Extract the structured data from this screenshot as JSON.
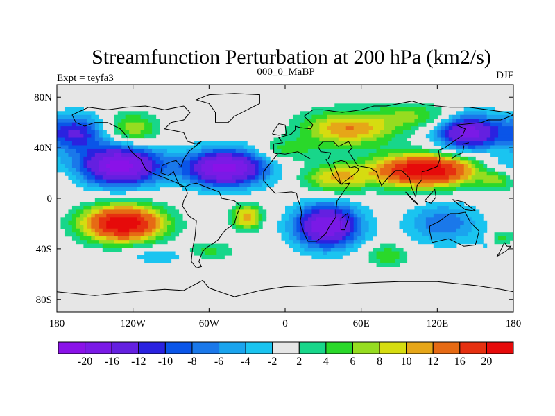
{
  "chart_data": {
    "type": "heatmap",
    "title": "Streamfunction Perturbation at 200 hPa (km2/s)",
    "subtitle_left": "Expt = teyfa3",
    "subtitle_center": "000_0_MaBP",
    "subtitle_right": "DJF",
    "x_tick_labels": [
      "180",
      "120W",
      "60W",
      "0",
      "60E",
      "120E",
      "180"
    ],
    "x_tick_values": [
      -180,
      -120,
      -60,
      0,
      60,
      120,
      180
    ],
    "y_tick_labels": [
      "80N",
      "40N",
      "0",
      "40S",
      "80S"
    ],
    "y_tick_values": [
      80,
      40,
      0,
      -40,
      -80
    ],
    "xlim": [
      -180,
      180
    ],
    "ylim": [
      -90,
      90
    ],
    "units": "km2/s",
    "colorbar_labels": [
      "-20",
      "-16",
      "-12",
      "-10",
      "-8",
      "-6",
      "-4",
      "-2",
      "2",
      "4",
      "6",
      "8",
      "10",
      "12",
      "16",
      "20"
    ],
    "colorbar_colors": [
      "#8a12e8",
      "#7a1ae6",
      "#6420e0",
      "#2a22e0",
      "#0a55e8",
      "#1a78ea",
      "#1aa4ee",
      "#1ac4f0",
      "#e6e6e6",
      "#18d68a",
      "#2ad82a",
      "#96dc20",
      "#d6dc10",
      "#e6a618",
      "#e66a14",
      "#e63010",
      "#e60a0a"
    ],
    "anomalies": [
      {
        "lon": -130,
        "lat": 26,
        "slon": 22,
        "slat": 11,
        "value": -22
      },
      {
        "lon": -47,
        "lat": 24,
        "slon": 22,
        "slat": 10,
        "value": -22
      },
      {
        "lon": 33,
        "lat": -22,
        "slon": 18,
        "slat": 12,
        "value": -20
      },
      {
        "lon": 145,
        "lat": 52,
        "slon": 18,
        "slat": 10,
        "value": -18
      },
      {
        "lon": -165,
        "lat": 52,
        "slon": 15,
        "slat": 10,
        "value": -12
      },
      {
        "lon": 125,
        "lat": -20,
        "slon": 20,
        "slat": 11,
        "value": -8
      },
      {
        "lon": 168,
        "lat": -35,
        "slon": 9,
        "slat": 6,
        "value": -6
      },
      {
        "lon": -100,
        "lat": -45,
        "slon": 20,
        "slat": 5,
        "value": -4
      },
      {
        "lon": 170,
        "lat": 25,
        "slon": 12,
        "slat": 6,
        "value": -4
      },
      {
        "lon": 110,
        "lat": 22,
        "slon": 28,
        "slat": 9,
        "value": 24
      },
      {
        "lon": 40,
        "lat": 16,
        "slon": 18,
        "slat": 8,
        "value": 10
      },
      {
        "lon": 50,
        "lat": 55,
        "slon": 26,
        "slat": 10,
        "value": 12
      },
      {
        "lon": -128,
        "lat": -20,
        "slon": 22,
        "slat": 10,
        "value": 24
      },
      {
        "lon": -120,
        "lat": 55,
        "slon": 14,
        "slat": 9,
        "value": 8
      },
      {
        "lon": -30,
        "lat": -15,
        "slon": 8,
        "slat": 7,
        "value": 12
      },
      {
        "lon": -60,
        "lat": -42,
        "slon": 14,
        "slat": 5,
        "value": 5
      },
      {
        "lon": 0,
        "lat": 38,
        "slon": 16,
        "slat": 6,
        "value": 5
      },
      {
        "lon": 105,
        "lat": 65,
        "slon": 22,
        "slat": 7,
        "value": 6
      },
      {
        "lon": 80,
        "lat": -45,
        "slon": 12,
        "slat": 6,
        "value": 6
      },
      {
        "lon": 168,
        "lat": 15,
        "slon": 9,
        "slat": 6,
        "value": 6
      },
      {
        "lon": 170,
        "lat": -33,
        "slon": 7,
        "slat": 5,
        "value": 10
      }
    ],
    "coastline_tracks": [
      [
        [
          -168,
          66
        ],
        [
          -155,
          72
        ],
        [
          -140,
          70
        ],
        [
          -125,
          72
        ],
        [
          -110,
          73
        ],
        [
          -95,
          70
        ],
        [
          -80,
          73
        ],
        [
          -75,
          68
        ],
        [
          -80,
          62
        ],
        [
          -90,
          60
        ],
        [
          -95,
          55
        ],
        [
          -80,
          52
        ],
        [
          -77,
          45
        ],
        [
          -70,
          43
        ],
        [
          -66,
          45
        ],
        [
          -76,
          37
        ],
        [
          -80,
          31
        ],
        [
          -82,
          25
        ],
        [
          -86,
          30
        ],
        [
          -90,
          29
        ],
        [
          -97,
          26
        ],
        [
          -98,
          20
        ],
        [
          -92,
          18
        ],
        [
          -88,
          21
        ],
        [
          -86,
          16
        ],
        [
          -83,
          10
        ],
        [
          -79,
          9
        ],
        [
          -85,
          12
        ],
        [
          -92,
          15
        ],
        [
          -105,
          20
        ],
        [
          -110,
          23
        ],
        [
          -114,
          31
        ],
        [
          -117,
          33
        ],
        [
          -122,
          38
        ],
        [
          -124,
          42
        ],
        [
          -124,
          48
        ],
        [
          -130,
          55
        ],
        [
          -140,
          60
        ],
        [
          -150,
          60
        ],
        [
          -158,
          57
        ],
        [
          -165,
          60
        ],
        [
          -168,
          66
        ]
      ],
      [
        [
          -79,
          9
        ],
        [
          -77,
          4
        ],
        [
          -80,
          -2
        ],
        [
          -81,
          -6
        ],
        [
          -76,
          -14
        ],
        [
          -70,
          -18
        ],
        [
          -71,
          -30
        ],
        [
          -73,
          -40
        ],
        [
          -74,
          -50
        ],
        [
          -70,
          -55
        ],
        [
          -66,
          -54
        ],
        [
          -68,
          -50
        ],
        [
          -65,
          -42
        ],
        [
          -62,
          -39
        ],
        [
          -57,
          -36
        ],
        [
          -53,
          -33
        ],
        [
          -48,
          -26
        ],
        [
          -44,
          -23
        ],
        [
          -40,
          -20
        ],
        [
          -38,
          -13
        ],
        [
          -35,
          -6
        ],
        [
          -40,
          -2
        ],
        [
          -50,
          0
        ],
        [
          -52,
          5
        ],
        [
          -60,
          8
        ],
        [
          -70,
          12
        ],
        [
          -75,
          11
        ],
        [
          -79,
          9
        ]
      ],
      [
        [
          -55,
          60
        ],
        [
          -45,
          60
        ],
        [
          -40,
          65
        ],
        [
          -30,
          70
        ],
        [
          -20,
          75
        ],
        [
          -20,
          82
        ],
        [
          -40,
          83
        ],
        [
          -60,
          82
        ],
        [
          -70,
          78
        ],
        [
          -60,
          75
        ],
        [
          -55,
          68
        ],
        [
          -55,
          60
        ]
      ],
      [
        [
          -9,
          36
        ],
        [
          -9,
          43
        ],
        [
          -2,
          44
        ],
        [
          -5,
          48
        ],
        [
          5,
          51
        ],
        [
          8,
          54
        ],
        [
          8,
          57
        ],
        [
          12,
          56
        ],
        [
          20,
          55
        ],
        [
          22,
          58
        ],
        [
          15,
          65
        ],
        [
          22,
          70
        ],
        [
          30,
          70
        ],
        [
          45,
          68
        ],
        [
          60,
          70
        ],
        [
          70,
          73
        ],
        [
          80,
          73
        ],
        [
          100,
          77
        ],
        [
          110,
          74
        ],
        [
          130,
          72
        ],
        [
          145,
          72
        ],
        [
          160,
          70
        ],
        [
          175,
          68
        ],
        [
          180,
          66
        ]
      ],
      [
        [
          -9,
          36
        ],
        [
          -6,
          35
        ],
        [
          -17,
          21
        ],
        [
          -17,
          14
        ],
        [
          -8,
          4
        ],
        [
          5,
          5
        ],
        [
          9,
          4
        ],
        [
          10,
          -1
        ],
        [
          12,
          -6
        ],
        [
          13,
          -12
        ],
        [
          12,
          -18
        ],
        [
          15,
          -28
        ],
        [
          18,
          -34
        ],
        [
          25,
          -34
        ],
        [
          32,
          -28
        ],
        [
          35,
          -22
        ],
        [
          40,
          -15
        ],
        [
          40,
          -10
        ],
        [
          41,
          -2
        ],
        [
          51,
          12
        ],
        [
          44,
          11
        ],
        [
          38,
          18
        ],
        [
          34,
          28
        ],
        [
          32,
          31
        ],
        [
          20,
          31
        ],
        [
          10,
          37
        ],
        [
          0,
          35
        ],
        [
          -9,
          36
        ]
      ],
      [
        [
          34,
          31
        ],
        [
          36,
          36
        ],
        [
          28,
          37
        ],
        [
          26,
          41
        ],
        [
          30,
          45
        ],
        [
          38,
          45
        ],
        [
          42,
          41
        ],
        [
          50,
          45
        ],
        [
          53,
          40
        ],
        [
          50,
          37
        ],
        [
          57,
          26
        ],
        [
          60,
          25
        ],
        [
          67,
          24
        ],
        [
          72,
          21
        ],
        [
          76,
          10
        ],
        [
          80,
          15
        ],
        [
          87,
          22
        ],
        [
          92,
          22
        ],
        [
          98,
          16
        ],
        [
          100,
          8
        ],
        [
          103,
          1
        ],
        [
          104,
          10
        ],
        [
          108,
          15
        ],
        [
          108,
          21
        ],
        [
          112,
          22
        ],
        [
          120,
          25
        ],
        [
          122,
          31
        ],
        [
          121,
          38
        ],
        [
          126,
          40
        ],
        [
          130,
          43
        ],
        [
          140,
          50
        ],
        [
          142,
          55
        ],
        [
          135,
          58
        ],
        [
          155,
          60
        ],
        [
          160,
          62
        ],
        [
          170,
          62
        ],
        [
          180,
          66
        ]
      ],
      [
        [
          44,
          11
        ],
        [
          52,
          17
        ],
        [
          57,
          21
        ],
        [
          58,
          23
        ],
        [
          55,
          25
        ],
        [
          51,
          24
        ],
        [
          48,
          29
        ],
        [
          44,
          30
        ],
        [
          38,
          28
        ],
        [
          42,
          18
        ],
        [
          44,
          11
        ]
      ],
      [
        [
          114,
          -22
        ],
        [
          122,
          -18
        ],
        [
          130,
          -12
        ],
        [
          136,
          -12
        ],
        [
          142,
          -11
        ],
        [
          146,
          -19
        ],
        [
          153,
          -26
        ],
        [
          150,
          -37
        ],
        [
          141,
          -38
        ],
        [
          135,
          -35
        ],
        [
          129,
          -32
        ],
        [
          116,
          -35
        ],
        [
          114,
          -26
        ],
        [
          114,
          -22
        ]
      ],
      [
        [
          131,
          31
        ],
        [
          135,
          34
        ],
        [
          140,
          36
        ],
        [
          141,
          41
        ],
        [
          140,
          43
        ],
        [
          145,
          44
        ]
      ],
      [
        [
          173,
          -35
        ],
        [
          175,
          -38
        ],
        [
          178,
          -38
        ],
        [
          174,
          -42
        ],
        [
          167,
          -46
        ],
        [
          169,
          -43
        ],
        [
          173,
          -35
        ]
      ],
      [
        [
          44,
          -25
        ],
        [
          47,
          -25
        ],
        [
          50,
          -15
        ],
        [
          49,
          -12
        ],
        [
          44,
          -16
        ],
        [
          44,
          -25
        ]
      ],
      [
        [
          -10,
          51
        ],
        [
          -5,
          50
        ],
        [
          1,
          51
        ],
        [
          0,
          58
        ],
        [
          -5,
          59
        ],
        [
          -8,
          55
        ],
        [
          -10,
          51
        ]
      ],
      [
        [
          95,
          5
        ],
        [
          105,
          -5
        ],
        [
          102,
          -3
        ],
        [
          95,
          5
        ]
      ],
      [
        [
          110,
          -2
        ],
        [
          118,
          7
        ],
        [
          119,
          1
        ],
        [
          115,
          -4
        ],
        [
          110,
          -2
        ]
      ],
      [
        [
          132,
          -1
        ],
        [
          141,
          -3
        ],
        [
          150,
          -10
        ],
        [
          142,
          -9
        ],
        [
          132,
          -1
        ]
      ],
      [
        [
          -180,
          -74
        ],
        [
          -150,
          -77
        ],
        [
          -120,
          -74
        ],
        [
          -95,
          -72
        ],
        [
          -80,
          -73
        ],
        [
          -65,
          -65
        ],
        [
          -60,
          -71
        ],
        [
          -40,
          -78
        ],
        [
          -20,
          -73
        ],
        [
          0,
          -70
        ],
        [
          30,
          -69
        ],
        [
          60,
          -67
        ],
        [
          90,
          -66
        ],
        [
          120,
          -66
        ],
        [
          150,
          -69
        ],
        [
          170,
          -72
        ],
        [
          180,
          -74
        ]
      ]
    ]
  }
}
